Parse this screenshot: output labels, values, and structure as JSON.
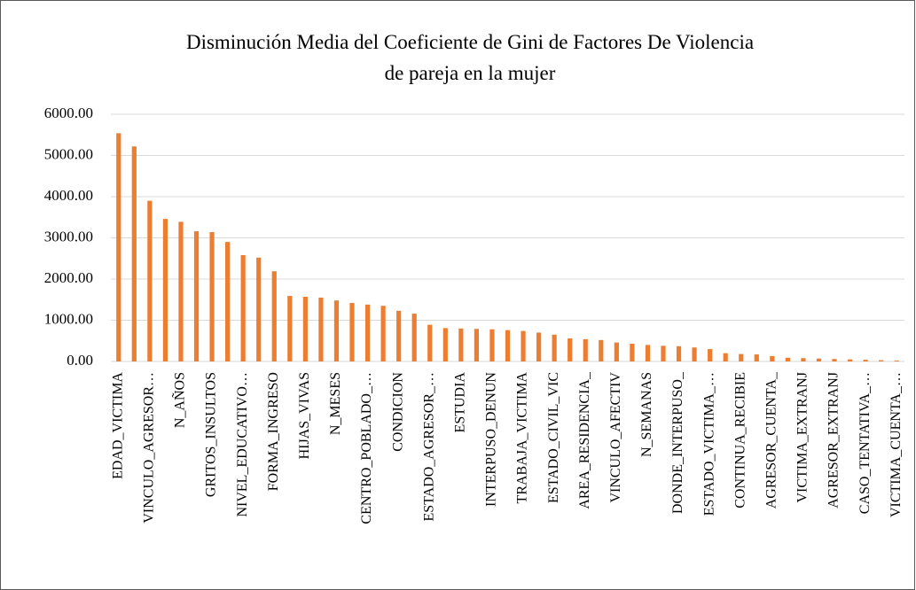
{
  "chart_data": {
    "type": "bar",
    "title": [
      "Disminución Media del Coeficiente de Gini de Factores De Violencia",
      "de pareja en la mujer"
    ],
    "categories": [
      "EDAD_VICTIMA",
      null,
      "VINCULO_AGRESOR…",
      null,
      "N_AÑOS",
      null,
      "GRITOS_INSULTOS",
      null,
      "NIVEL_EDUCATIVO…",
      null,
      "FORMA_INGRESO",
      null,
      "HIJAS_VIVAS",
      null,
      "N_MESES",
      null,
      "CENTRO_POBLADO_…",
      null,
      "CONDICION",
      null,
      "ESTADO_AGRESOR_…",
      null,
      "ESTUDIA",
      null,
      "INTERPUSO_DENUN",
      null,
      "TRABAJA_VICTIMA",
      null,
      "ESTADO_CIVIL_VIC",
      null,
      "AREA_RESIDENCIA_",
      null,
      "VINCULO_AFECTIV",
      null,
      "N_SEMANAS",
      null,
      "DONDE_INTERPUSO_",
      null,
      "ESTADO_VICTIMA_…",
      null,
      "CONTINUA_RECIBIE",
      null,
      "AGRESOR_CUENTA_",
      null,
      "VICTIMA_EXTRANJ",
      null,
      "AGRESOR_EXTRANJ",
      null,
      "CASO_TENTATIVA_…",
      null,
      "VICTIMA_CUENTA_…"
    ],
    "values": [
      5540,
      5220,
      3900,
      3460,
      3390,
      3160,
      3140,
      2900,
      2580,
      2520,
      2190,
      1590,
      1570,
      1550,
      1480,
      1420,
      1380,
      1350,
      1230,
      1160,
      890,
      810,
      800,
      790,
      780,
      760,
      740,
      700,
      650,
      560,
      540,
      520,
      460,
      430,
      400,
      380,
      370,
      340,
      300,
      200,
      180,
      170,
      130,
      90,
      80,
      70,
      60,
      50,
      40,
      30,
      20
    ],
    "color": "#ed7d31",
    "ylim": [
      0,
      6000
    ],
    "yticks": [
      {
        "value": 0,
        "label": "0.00"
      },
      {
        "value": 1000,
        "label": "1000.00"
      },
      {
        "value": 2000,
        "label": "2000.00"
      },
      {
        "value": 3000,
        "label": "3000.00"
      },
      {
        "value": 4000,
        "label": "4000.00"
      },
      {
        "value": 5000,
        "label": "5000.00"
      },
      {
        "value": 6000,
        "label": "6000.00"
      }
    ],
    "grid": true
  }
}
